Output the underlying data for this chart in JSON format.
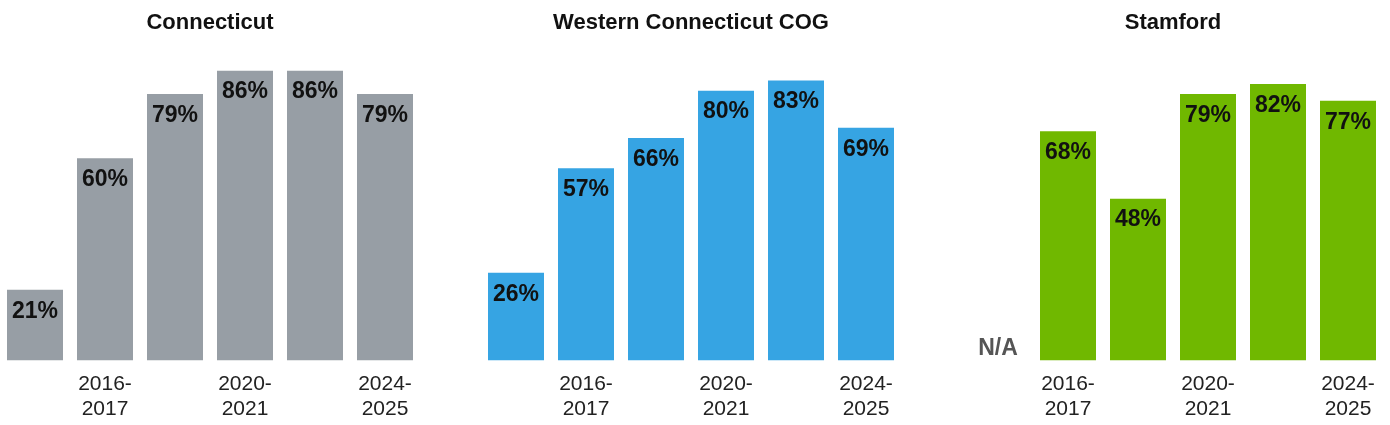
{
  "chart_data": [
    {
      "type": "bar",
      "title": "Connecticut",
      "categories": [
        null,
        "2016-2017",
        null,
        "2020-2021",
        null,
        "2024-2025"
      ],
      "values": [
        21,
        60,
        79,
        86,
        86,
        79
      ],
      "color": "#979ea5",
      "value_labels": [
        "21%",
        "60%",
        "79%",
        "86%",
        "86%",
        "79%"
      ]
    },
    {
      "type": "bar",
      "title": "Western Connecticut COG",
      "categories": [
        null,
        "2016-2017",
        null,
        "2020-2021",
        null,
        "2024-2025"
      ],
      "values": [
        26,
        57,
        66,
        80,
        83,
        69
      ],
      "color": "#36a4e3",
      "value_labels": [
        "26%",
        "57%",
        "66%",
        "80%",
        "83%",
        "69%"
      ]
    },
    {
      "type": "bar",
      "title": "Stamford",
      "categories": [
        null,
        "2016-2017",
        null,
        "2020-2021",
        null,
        "2024-2025"
      ],
      "values": [
        null,
        68,
        48,
        79,
        82,
        77
      ],
      "color": "#70b800",
      "value_labels": [
        "N/A",
        "68%",
        "48%",
        "79%",
        "82%",
        "77%"
      ]
    }
  ]
}
